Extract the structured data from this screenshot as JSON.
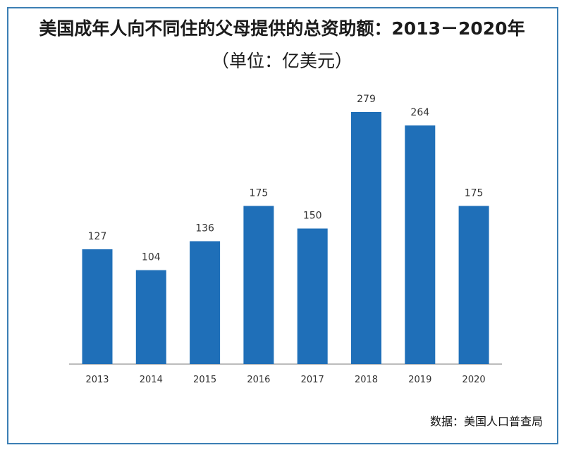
{
  "chart_data": {
    "type": "bar",
    "title": "美国成年人向不同住的父母提供的总资助额：2013－2020年",
    "subtitle": "（单位：亿美元）",
    "categories": [
      "2013",
      "2014",
      "2015",
      "2016",
      "2017",
      "2018",
      "2019",
      "2020"
    ],
    "values": [
      127,
      104,
      136,
      175,
      150,
      279,
      264,
      175
    ],
    "data_labels": [
      "127",
      "104",
      "136",
      "175",
      "150",
      "279",
      "264",
      "175"
    ],
    "ylim": [
      0,
      279
    ],
    "grid": false,
    "bar_color": "#1f6fb8",
    "source": "数据：美国人口普查局"
  }
}
